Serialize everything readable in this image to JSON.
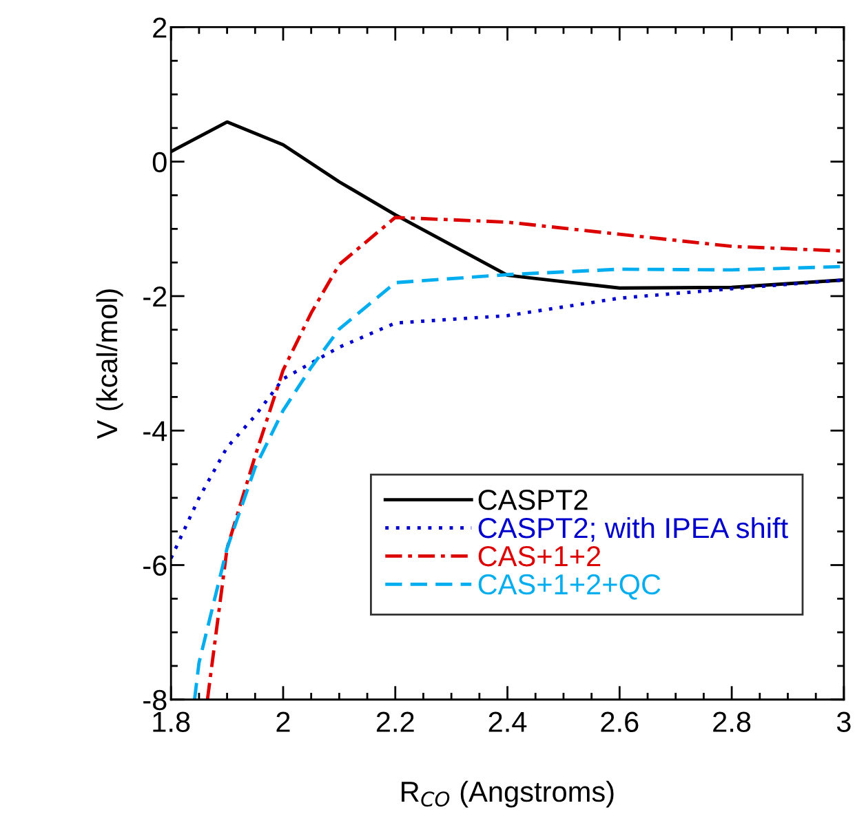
{
  "chart_data": {
    "type": "line",
    "xlabel": "R$_{CO}$ (Angstroms)",
    "ylabel": "V (kcal/mol)",
    "xlim": [
      1.8,
      3
    ],
    "xticks": [
      1.8,
      2,
      2.2,
      2.4,
      2.6,
      2.8,
      3
    ],
    "ylim": [
      -8,
      2
    ],
    "yticks": [
      -8,
      -6,
      -4,
      -2,
      0,
      2
    ],
    "grid": false,
    "legend": "bottom right",
    "marker": "none",
    "series": [
      {
        "name": "CASPT2",
        "color": "#000000",
        "line_style": "solid",
        "x": [
          1.8,
          1.9,
          2.0,
          2.1,
          2.2,
          2.4,
          2.6,
          2.8,
          3.0
        ],
        "values": [
          0.15,
          0.59,
          0.25,
          -0.3,
          -0.79,
          -1.69,
          -1.88,
          -1.87,
          -1.76
        ]
      },
      {
        "name": "CASPT2; with IPEA shift",
        "color": "#0000cc",
        "line_style": "dotted",
        "x": [
          1.8,
          1.85,
          1.9,
          1.95,
          2.0,
          2.1,
          2.2,
          2.4,
          2.6,
          2.8,
          3.0
        ],
        "values": [
          -5.9,
          -5.0,
          -4.25,
          -3.78,
          -3.23,
          -2.76,
          -2.4,
          -2.29,
          -2.03,
          -1.89,
          -1.76
        ]
      },
      {
        "name": "CAS+1+2",
        "color": "#dd0000",
        "line_style": "dashdot",
        "x": [
          1.865,
          1.9,
          1.95,
          2.0,
          2.05,
          2.1,
          2.2,
          2.4,
          2.6,
          2.8,
          3.0
        ],
        "values": [
          -8.0,
          -5.75,
          -4.38,
          -3.1,
          -2.25,
          -1.53,
          -0.83,
          -0.9,
          -1.08,
          -1.26,
          -1.33
        ]
      },
      {
        "name": "CAS+1+2+QC",
        "color": "#00aeef",
        "line_style": "dashed",
        "x": [
          1.842,
          1.85,
          1.9,
          1.95,
          2.0,
          2.05,
          2.1,
          2.2,
          2.4,
          2.6,
          2.8,
          3.0
        ],
        "values": [
          -8.0,
          -7.45,
          -5.75,
          -4.55,
          -3.7,
          -3.06,
          -2.49,
          -1.8,
          -1.68,
          -1.6,
          -1.61,
          -1.56
        ]
      }
    ]
  }
}
